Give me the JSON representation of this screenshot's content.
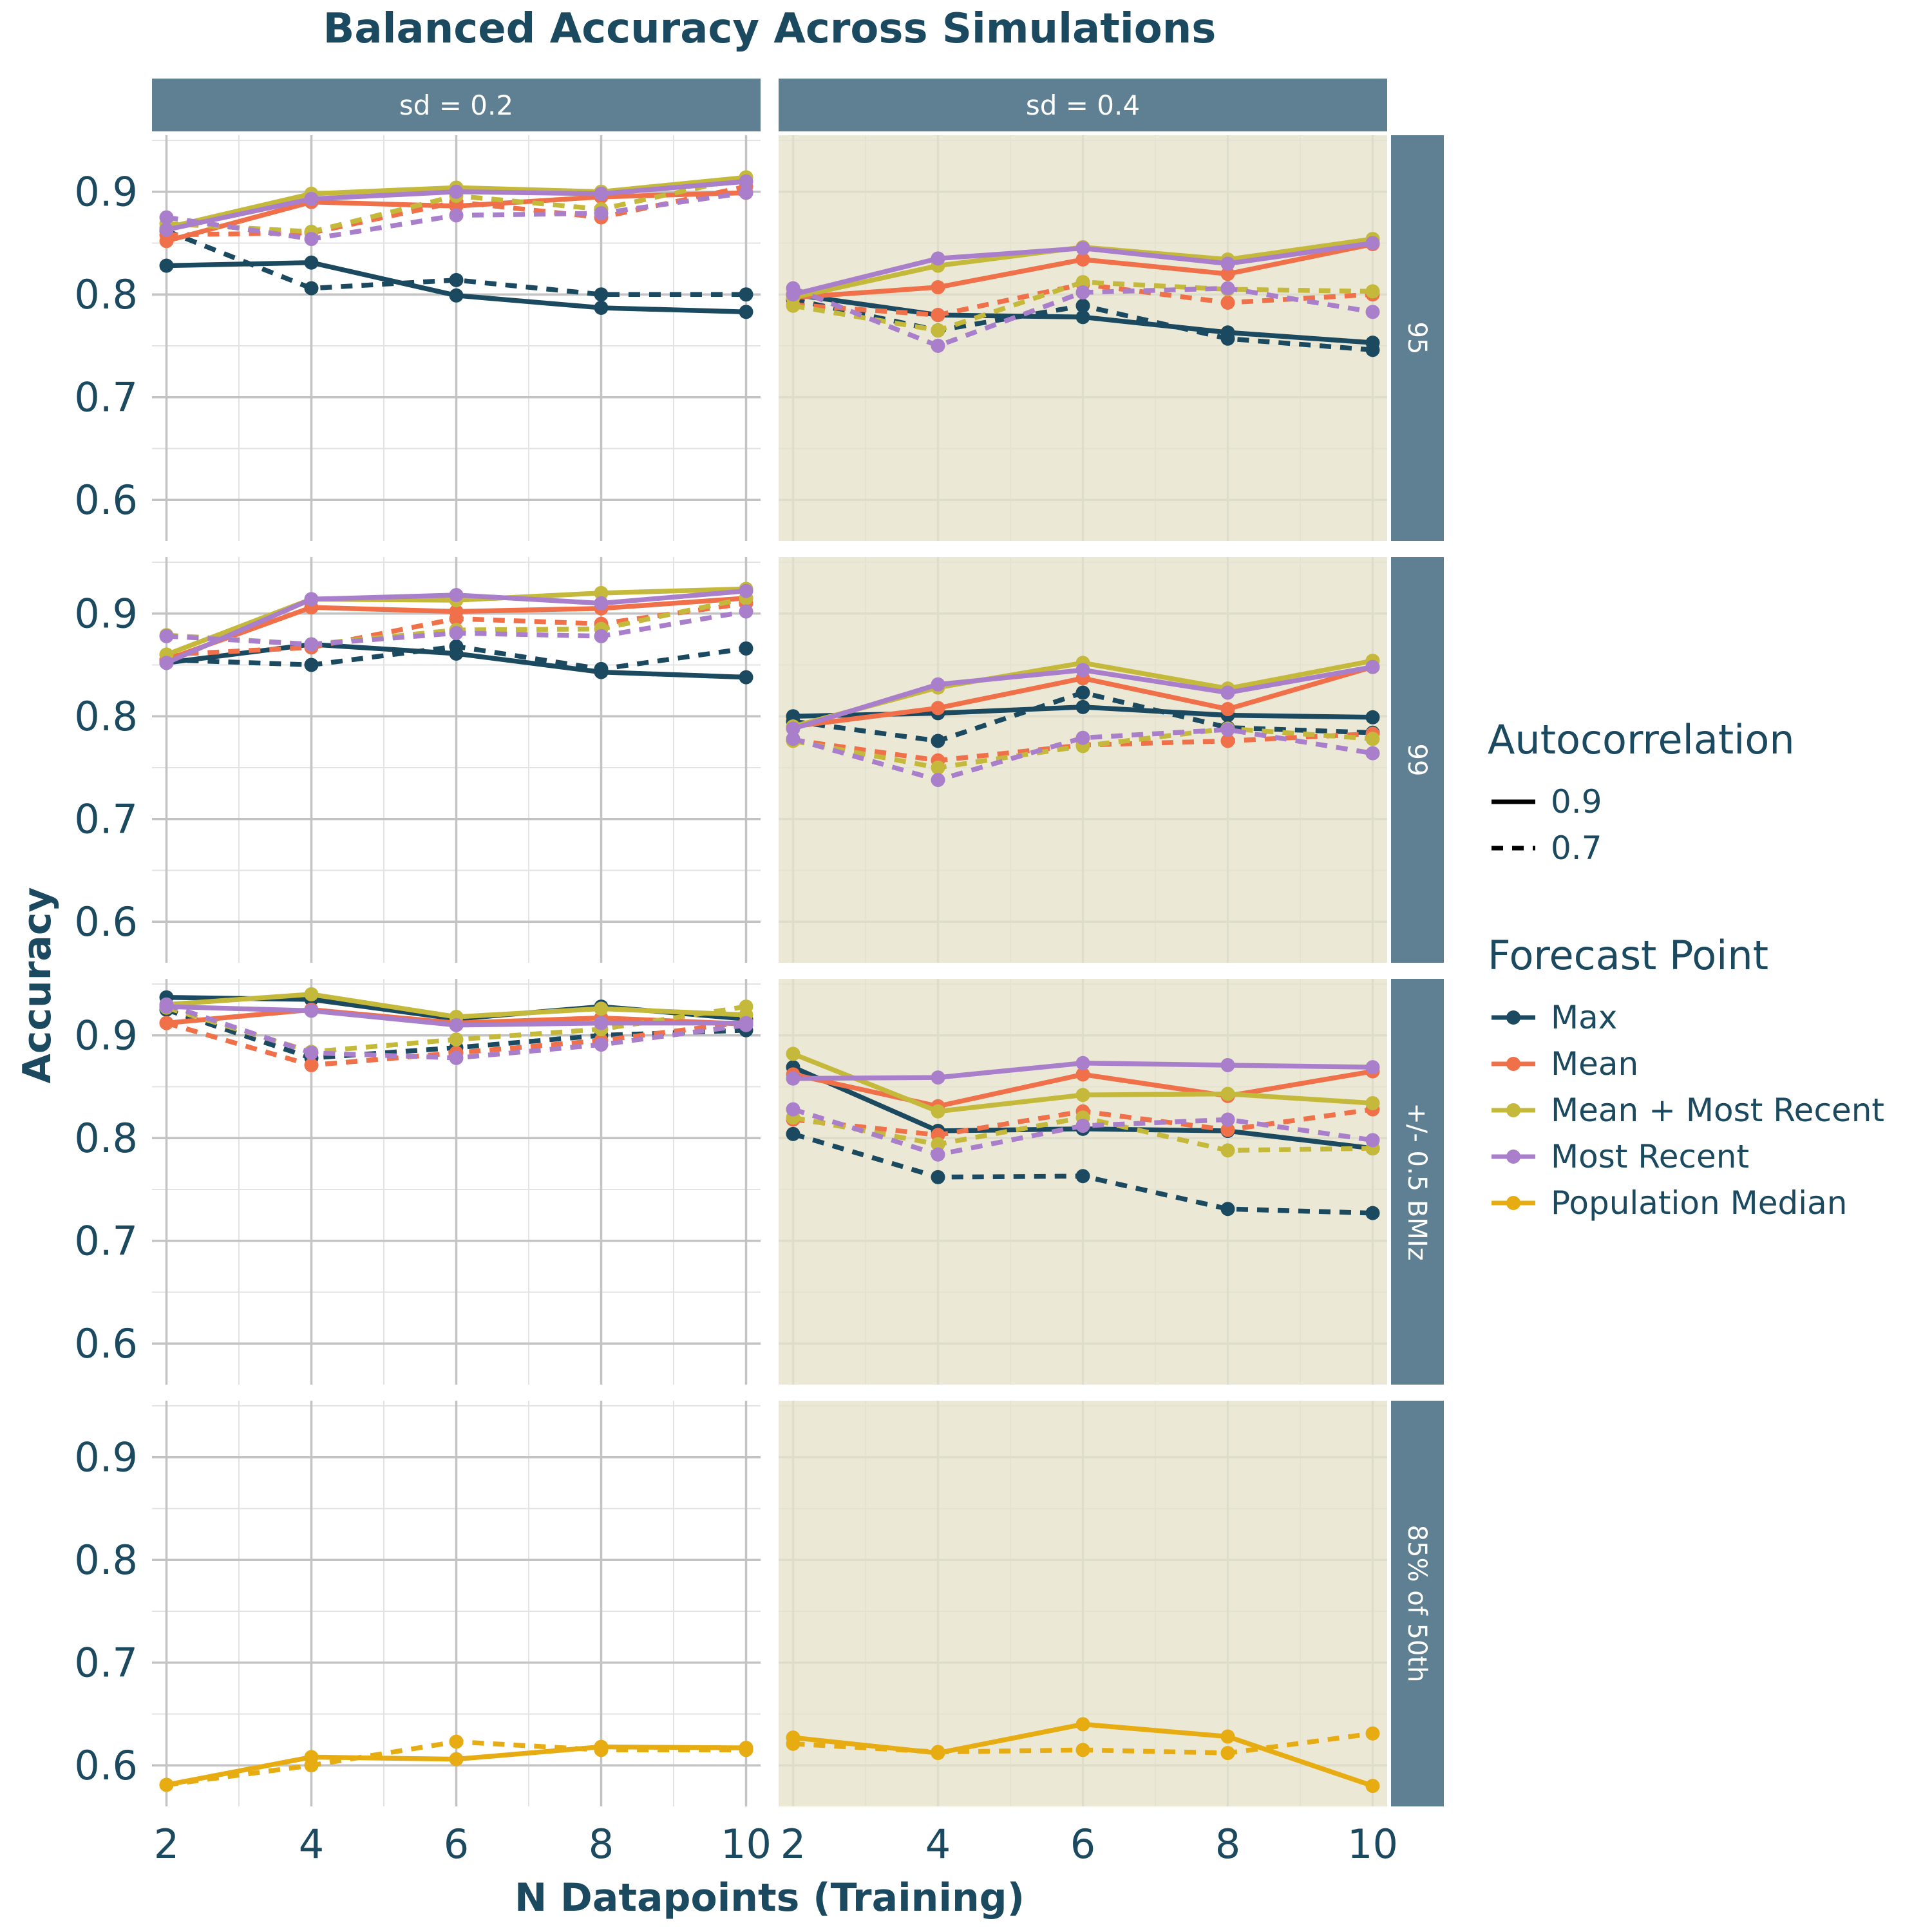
{
  "chart_data": {
    "type": "line",
    "title": "Balanced Accuracy Across Simulations",
    "xlabel": "N Datapoints (Training)",
    "ylabel": "Accuracy",
    "x": [
      2,
      4,
      6,
      8,
      10
    ],
    "x_ticks": [
      "2",
      "4",
      "6",
      "8",
      "10"
    ],
    "y_ticks": [
      "0.6",
      "0.7",
      "0.8",
      "0.9"
    ],
    "ylim": [
      0.56,
      0.955
    ],
    "xlim": [
      1.8,
      10.2
    ],
    "facet_columns": [
      "sd = 0.2",
      "sd = 0.4"
    ],
    "facet_rows": [
      "95",
      "99",
      "+/- 0.5 BMIz",
      "85% of 50th"
    ],
    "colors": {
      "Max": "#1b4a60",
      "Mean": "#f07049",
      "Mean + Most Recent": "#c4b93a",
      "Most Recent": "#a97fcc",
      "Population Median": "#e6ac12",
      "strip": "#5f8092",
      "panel_shaded": "#ebe9d6",
      "grid_major": "#c3c3c3",
      "grid_minor": "#e3e3e3"
    },
    "legend": {
      "position": "right",
      "autocorrelation": {
        "title": "Autocorrelation",
        "items": [
          {
            "label": "0.9",
            "dash": "solid"
          },
          {
            "label": "0.7",
            "dash": "dashed"
          }
        ]
      },
      "forecast": {
        "title": "Forecast Point",
        "items": [
          "Max",
          "Mean",
          "Mean + Most Recent",
          "Most Recent",
          "Population Median"
        ]
      }
    },
    "panels": [
      {
        "row": "95",
        "col": "sd = 0.2",
        "series": [
          {
            "forecast": "Max",
            "autocorrelation": "0.9",
            "values": [
              0.828,
              0.831,
              0.799,
              0.787,
              0.783
            ]
          },
          {
            "forecast": "Max",
            "autocorrelation": "0.7",
            "values": [
              0.862,
              0.806,
              0.814,
              0.8,
              0.8
            ]
          },
          {
            "forecast": "Mean",
            "autocorrelation": "0.9",
            "values": [
              0.852,
              0.89,
              0.886,
              0.895,
              0.899
            ]
          },
          {
            "forecast": "Mean",
            "autocorrelation": "0.7",
            "values": [
              0.858,
              0.86,
              0.89,
              0.875,
              0.905
            ]
          },
          {
            "forecast": "Mean + Most Recent",
            "autocorrelation": "0.9",
            "values": [
              0.865,
              0.898,
              0.904,
              0.9,
              0.914
            ]
          },
          {
            "forecast": "Mean + Most Recent",
            "autocorrelation": "0.7",
            "values": [
              0.869,
              0.861,
              0.896,
              0.883,
              0.914
            ]
          },
          {
            "forecast": "Most Recent",
            "autocorrelation": "0.9",
            "values": [
              0.863,
              0.893,
              0.9,
              0.898,
              0.91
            ]
          },
          {
            "forecast": "Most Recent",
            "autocorrelation": "0.7",
            "values": [
              0.875,
              0.854,
              0.877,
              0.879,
              0.899
            ]
          }
        ]
      },
      {
        "row": "95",
        "col": "sd = 0.4",
        "series": [
          {
            "forecast": "Max",
            "autocorrelation": "0.9",
            "values": [
              0.8,
              0.78,
              0.778,
              0.763,
              0.753
            ]
          },
          {
            "forecast": "Max",
            "autocorrelation": "0.7",
            "values": [
              0.795,
              0.765,
              0.789,
              0.757,
              0.746
            ]
          },
          {
            "forecast": "Mean",
            "autocorrelation": "0.9",
            "values": [
              0.797,
              0.807,
              0.834,
              0.82,
              0.849
            ]
          },
          {
            "forecast": "Mean",
            "autocorrelation": "0.7",
            "values": [
              0.79,
              0.78,
              0.81,
              0.792,
              0.8
            ]
          },
          {
            "forecast": "Mean + Most Recent",
            "autocorrelation": "0.9",
            "values": [
              0.797,
              0.828,
              0.846,
              0.834,
              0.854
            ]
          },
          {
            "forecast": "Mean + Most Recent",
            "autocorrelation": "0.7",
            "values": [
              0.789,
              0.765,
              0.812,
              0.805,
              0.803
            ]
          },
          {
            "forecast": "Most Recent",
            "autocorrelation": "0.9",
            "values": [
              0.8,
              0.835,
              0.845,
              0.83,
              0.85
            ]
          },
          {
            "forecast": "Most Recent",
            "autocorrelation": "0.7",
            "values": [
              0.806,
              0.75,
              0.802,
              0.806,
              0.783
            ]
          }
        ]
      },
      {
        "row": "99",
        "col": "sd = 0.2",
        "series": [
          {
            "forecast": "Max",
            "autocorrelation": "0.9",
            "values": [
              0.852,
              0.87,
              0.861,
              0.843,
              0.838
            ]
          },
          {
            "forecast": "Max",
            "autocorrelation": "0.7",
            "values": [
              0.855,
              0.85,
              0.868,
              0.846,
              0.866
            ]
          },
          {
            "forecast": "Mean",
            "autocorrelation": "0.9",
            "values": [
              0.855,
              0.906,
              0.902,
              0.905,
              0.915
            ]
          },
          {
            "forecast": "Mean",
            "autocorrelation": "0.7",
            "values": [
              0.86,
              0.867,
              0.895,
              0.89,
              0.91
            ]
          },
          {
            "forecast": "Mean + Most Recent",
            "autocorrelation": "0.9",
            "values": [
              0.86,
              0.914,
              0.913,
              0.92,
              0.924
            ]
          },
          {
            "forecast": "Mean + Most Recent",
            "autocorrelation": "0.7",
            "values": [
              0.879,
              0.87,
              0.884,
              0.885,
              0.915
            ]
          },
          {
            "forecast": "Most Recent",
            "autocorrelation": "0.9",
            "values": [
              0.852,
              0.914,
              0.918,
              0.91,
              0.922
            ]
          },
          {
            "forecast": "Most Recent",
            "autocorrelation": "0.7",
            "values": [
              0.878,
              0.87,
              0.881,
              0.878,
              0.902
            ]
          }
        ]
      },
      {
        "row": "99",
        "col": "sd = 0.4",
        "series": [
          {
            "forecast": "Max",
            "autocorrelation": "0.9",
            "values": [
              0.8,
              0.803,
              0.809,
              0.801,
              0.799
            ]
          },
          {
            "forecast": "Max",
            "autocorrelation": "0.7",
            "values": [
              0.795,
              0.776,
              0.823,
              0.789,
              0.784
            ]
          },
          {
            "forecast": "Mean",
            "autocorrelation": "0.9",
            "values": [
              0.79,
              0.808,
              0.837,
              0.807,
              0.848
            ]
          },
          {
            "forecast": "Mean",
            "autocorrelation": "0.7",
            "values": [
              0.777,
              0.757,
              0.772,
              0.776,
              0.783
            ]
          },
          {
            "forecast": "Mean + Most Recent",
            "autocorrelation": "0.9",
            "values": [
              0.79,
              0.828,
              0.852,
              0.827,
              0.854
            ]
          },
          {
            "forecast": "Mean + Most Recent",
            "autocorrelation": "0.7",
            "values": [
              0.776,
              0.75,
              0.771,
              0.788,
              0.778
            ]
          },
          {
            "forecast": "Most Recent",
            "autocorrelation": "0.9",
            "values": [
              0.788,
              0.831,
              0.845,
              0.823,
              0.848
            ]
          },
          {
            "forecast": "Most Recent",
            "autocorrelation": "0.7",
            "values": [
              0.778,
              0.738,
              0.779,
              0.787,
              0.764
            ]
          }
        ]
      },
      {
        "row": "+/- 0.5 BMIz",
        "col": "sd = 0.2",
        "series": [
          {
            "forecast": "Max",
            "autocorrelation": "0.9",
            "values": [
              0.937,
              0.935,
              0.916,
              0.928,
              0.916
            ]
          },
          {
            "forecast": "Max",
            "autocorrelation": "0.7",
            "values": [
              0.925,
              0.878,
              0.888,
              0.9,
              0.905
            ]
          },
          {
            "forecast": "Mean",
            "autocorrelation": "0.9",
            "values": [
              0.912,
              0.925,
              0.912,
              0.917,
              0.911
            ]
          },
          {
            "forecast": "Mean",
            "autocorrelation": "0.7",
            "values": [
              0.912,
              0.871,
              0.883,
              0.895,
              0.913
            ]
          },
          {
            "forecast": "Mean + Most Recent",
            "autocorrelation": "0.9",
            "values": [
              0.93,
              0.94,
              0.918,
              0.926,
              0.92
            ]
          },
          {
            "forecast": "Mean + Most Recent",
            "autocorrelation": "0.7",
            "values": [
              0.927,
              0.884,
              0.896,
              0.906,
              0.928
            ]
          },
          {
            "forecast": "Most Recent",
            "autocorrelation": "0.9",
            "values": [
              0.928,
              0.924,
              0.91,
              0.912,
              0.912
            ]
          },
          {
            "forecast": "Most Recent",
            "autocorrelation": "0.7",
            "values": [
              0.93,
              0.883,
              0.878,
              0.891,
              0.91
            ]
          }
        ]
      },
      {
        "row": "+/- 0.5 BMIz",
        "col": "sd = 0.4",
        "series": [
          {
            "forecast": "Max",
            "autocorrelation": "0.9",
            "values": [
              0.869,
              0.807,
              0.809,
              0.807,
              0.79
            ]
          },
          {
            "forecast": "Max",
            "autocorrelation": "0.7",
            "values": [
              0.804,
              0.762,
              0.763,
              0.731,
              0.727
            ]
          },
          {
            "forecast": "Mean",
            "autocorrelation": "0.9",
            "values": [
              0.862,
              0.831,
              0.862,
              0.841,
              0.865
            ]
          },
          {
            "forecast": "Mean",
            "autocorrelation": "0.7",
            "values": [
              0.818,
              0.803,
              0.826,
              0.808,
              0.828
            ]
          },
          {
            "forecast": "Mean + Most Recent",
            "autocorrelation": "0.9",
            "values": [
              0.882,
              0.826,
              0.842,
              0.843,
              0.834
            ]
          },
          {
            "forecast": "Mean + Most Recent",
            "autocorrelation": "0.7",
            "values": [
              0.82,
              0.794,
              0.82,
              0.788,
              0.79
            ]
          },
          {
            "forecast": "Most Recent",
            "autocorrelation": "0.9",
            "values": [
              0.858,
              0.859,
              0.873,
              0.871,
              0.869
            ]
          },
          {
            "forecast": "Most Recent",
            "autocorrelation": "0.7",
            "values": [
              0.828,
              0.784,
              0.812,
              0.818,
              0.798
            ]
          }
        ]
      },
      {
        "row": "85% of 50th",
        "col": "sd = 0.2",
        "series": [
          {
            "forecast": "Population Median",
            "autocorrelation": "0.9",
            "values": [
              0.581,
              0.608,
              0.606,
              0.618,
              0.617
            ]
          },
          {
            "forecast": "Population Median",
            "autocorrelation": "0.7",
            "values": [
              0.581,
              0.6,
              0.623,
              0.615,
              0.615
            ]
          }
        ]
      },
      {
        "row": "85% of 50th",
        "col": "sd = 0.4",
        "series": [
          {
            "forecast": "Population Median",
            "autocorrelation": "0.9",
            "values": [
              0.627,
              0.612,
              0.64,
              0.628,
              0.58
            ]
          },
          {
            "forecast": "Population Median",
            "autocorrelation": "0.7",
            "values": [
              0.621,
              0.613,
              0.615,
              0.612,
              0.631
            ]
          }
        ]
      }
    ]
  }
}
